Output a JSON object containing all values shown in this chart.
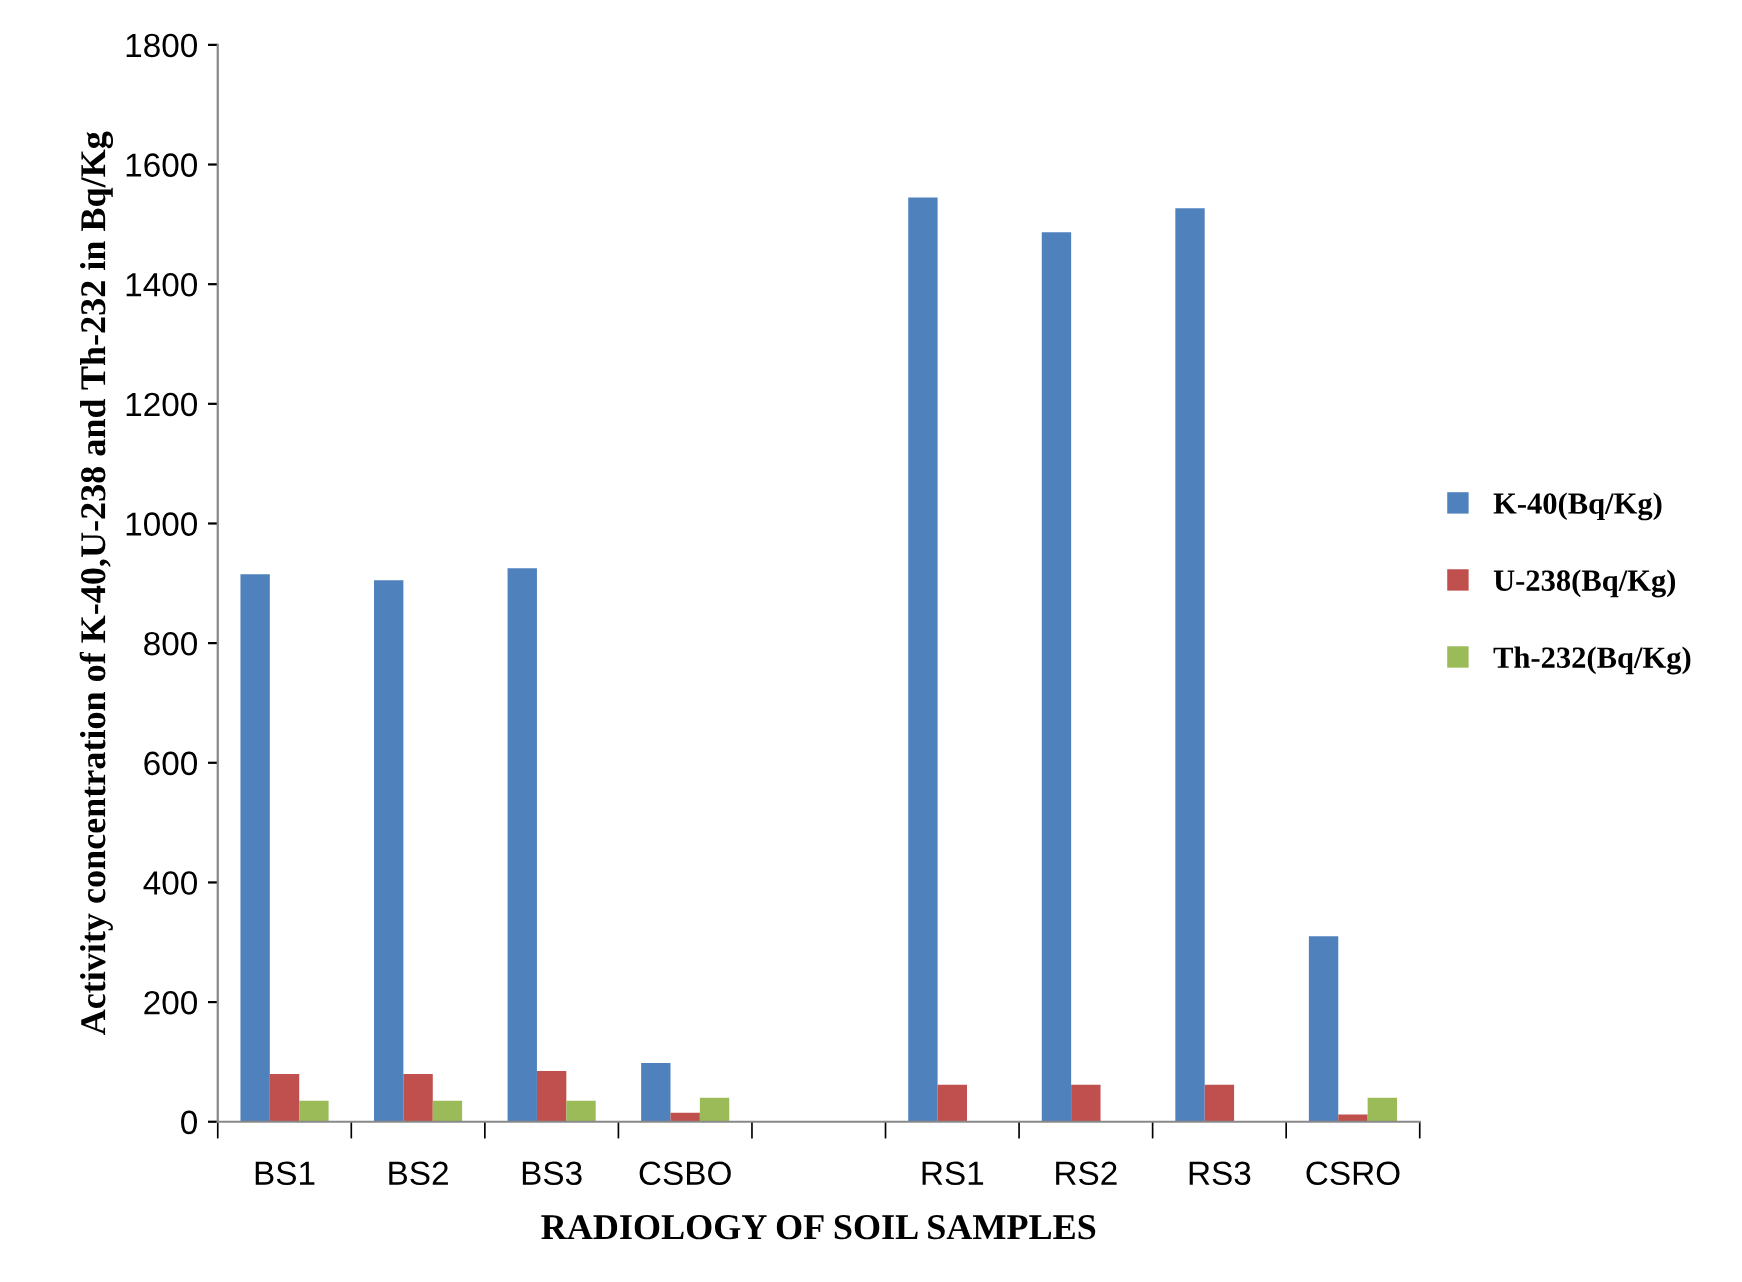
{
  "chart_data": {
    "type": "bar",
    "xlabel": "RADIOLOGY OF SOIL SAMPLES",
    "ylabel": "Activity concentration of K-40,U-238 and Th-232 in Bq/Kg",
    "categories": [
      "BS1",
      "BS2",
      "BS3",
      "CSBO",
      null,
      "RS1",
      "RS2",
      "RS3",
      "CSRO"
    ],
    "series": [
      {
        "name": "K-40(Bq/Kg)",
        "color": "#4f81bd",
        "values": [
          915,
          905,
          925,
          98,
          null,
          1545,
          1487,
          1527,
          310
        ]
      },
      {
        "name": "U-238(Bq/Kg)",
        "color": "#c0504d",
        "values": [
          80,
          80,
          85,
          15,
          null,
          62,
          62,
          62,
          12
        ]
      },
      {
        "name": "Th-232(Bq/Kg)",
        "color": "#9bbb59",
        "values": [
          35,
          35,
          35,
          40,
          null,
          null,
          null,
          null,
          40
        ]
      }
    ],
    "ylim": [
      0,
      1800
    ],
    "yticks": [
      0,
      200,
      400,
      600,
      800,
      1000,
      1200,
      1400,
      1600,
      1800
    ],
    "grid": false,
    "legend": "right"
  }
}
